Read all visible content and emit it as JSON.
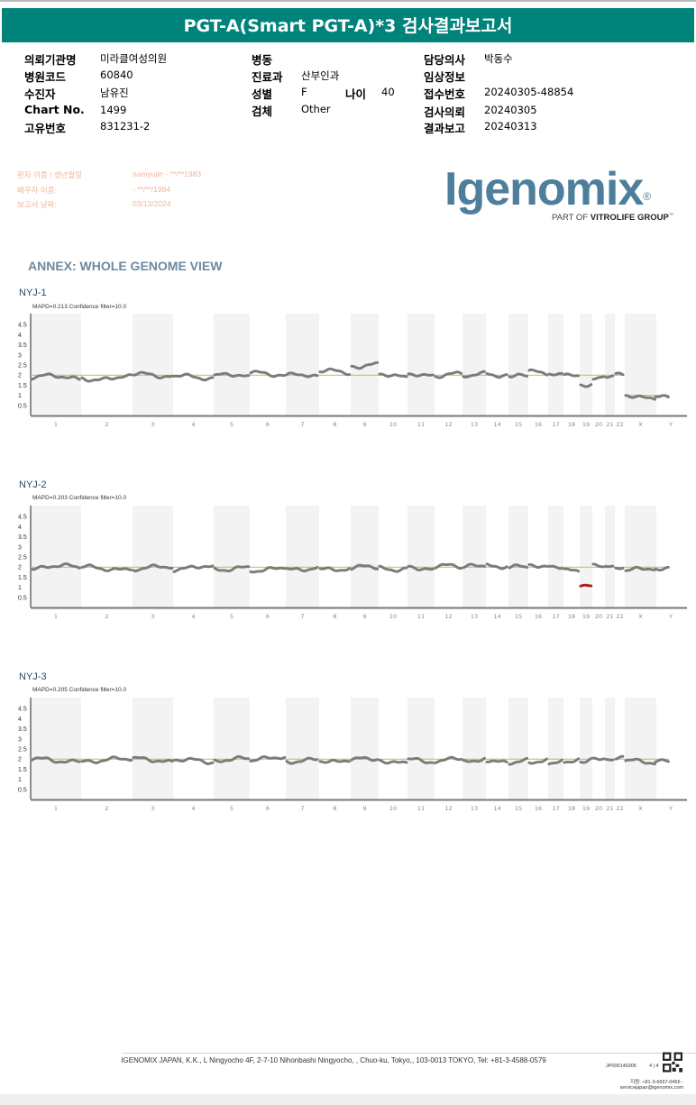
{
  "header": {
    "title": "PGT-A(Smart PGT-A)*3 검사결과보고서"
  },
  "info": {
    "col1": [
      {
        "label": "의뢰기관명",
        "value": "미라클여성의원"
      },
      {
        "label": "병원코드",
        "value": "60840"
      },
      {
        "label": "수진자",
        "value": "남유진"
      },
      {
        "label": "Chart No.",
        "value": "1499"
      },
      {
        "label": "고유번호",
        "value": "831231-2"
      }
    ],
    "col2": [
      {
        "label": "병동",
        "value": ""
      },
      {
        "label": "진료과",
        "value": "산부인과"
      },
      {
        "label": "성별",
        "value": "F"
      },
      {
        "label": "검체",
        "value": "Other"
      }
    ],
    "age": {
      "label": "나이",
      "value": "40"
    },
    "col3": [
      {
        "label": "담당의사",
        "value": "박동수"
      },
      {
        "label": "임상정보",
        "value": ""
      },
      {
        "label": "접수번호",
        "value": "20240305-48854"
      },
      {
        "label": "검사의뢰",
        "value": "20240305"
      },
      {
        "label": "결과보고",
        "value": "20240313"
      }
    ]
  },
  "patient": [
    {
      "label": "환자 이름 / 생년월일",
      "value": "namyujin - **/**1983"
    },
    {
      "label": "배우자 이름:",
      "value": " - **/**/1984"
    },
    {
      "label": "보고서 날짜:",
      "value": "03/13/2024"
    }
  ],
  "logo": {
    "name": "Igenomix",
    "reg": "®",
    "sub_prefix": "PART OF ",
    "sub_bold": "VITROLIFE GROUP",
    "tm": "™"
  },
  "annex_title": "ANNEX: WHOLE GENOME VIEW",
  "colors": {
    "teal": "#00837b",
    "point": "#7b7b7b",
    "abnormal": "#b01c1c",
    "ref": "#d4b25a",
    "band": "#f3f3f3"
  },
  "chart_data": [
    {
      "type": "scatter",
      "title": "NYJ-1",
      "subtitle": "MAPD=0.213 Confidence filter=10.0",
      "yticks": [
        "0.5",
        "1",
        "1.5",
        "2",
        "2.5",
        "3",
        "3.5",
        "4",
        "4.5"
      ],
      "ylim": [
        0,
        5
      ],
      "categories": [
        "1",
        "2",
        "3",
        "4",
        "5",
        "6",
        "7",
        "8",
        "9",
        "10",
        "11",
        "12",
        "13",
        "14",
        "15",
        "16",
        "17",
        "18",
        "19",
        "20",
        "21",
        "22",
        "X",
        "Y"
      ],
      "copy_number": [
        1.9,
        1.85,
        2.0,
        1.9,
        1.95,
        2.05,
        1.95,
        2.15,
        2.5,
        1.95,
        1.95,
        2.0,
        2.0,
        2.05,
        1.9,
        2.1,
        2.0,
        2.05,
        1.6,
        1.95,
        2.0,
        1.95,
        0.95,
        1.0
      ],
      "reference": {
        "autosomes": 2,
        "X": 1,
        "Y": 1
      },
      "abnormal": []
    },
    {
      "type": "scatter",
      "title": "NYJ-2",
      "subtitle": "MAPD=0.203 Confidence filter=10.0",
      "yticks": [
        "0.5",
        "1",
        "1.5",
        "2",
        "2.5",
        "3",
        "3.5",
        "4",
        "4.5"
      ],
      "ylim": [
        0,
        5
      ],
      "categories": [
        "1",
        "2",
        "3",
        "4",
        "5",
        "6",
        "7",
        "8",
        "9",
        "10",
        "11",
        "12",
        "13",
        "14",
        "15",
        "16",
        "17",
        "18",
        "19",
        "20",
        "21",
        "22",
        "X",
        "Y"
      ],
      "copy_number": [
        2.0,
        1.95,
        1.95,
        1.95,
        1.95,
        1.9,
        1.95,
        1.95,
        1.95,
        1.95,
        1.95,
        2.0,
        2.0,
        2.1,
        1.95,
        2.0,
        1.95,
        1.85,
        1.1,
        2.1,
        2.0,
        1.95,
        1.85,
        1.85
      ],
      "reference": {
        "autosomes": 2,
        "X": 2,
        "Y": 2
      },
      "abnormal": [
        "19"
      ]
    },
    {
      "type": "scatter",
      "title": "NYJ-3",
      "subtitle": "MAPD=0.205 Confidence filter=10.0",
      "yticks": [
        "0.5",
        "1",
        "1.5",
        "2",
        "2.5",
        "3",
        "3.5",
        "4",
        "4.5"
      ],
      "ylim": [
        0,
        5
      ],
      "categories": [
        "1",
        "2",
        "3",
        "4",
        "5",
        "6",
        "7",
        "8",
        "9",
        "10",
        "11",
        "12",
        "13",
        "14",
        "15",
        "16",
        "17",
        "18",
        "19",
        "20",
        "21",
        "22",
        "X",
        "Y"
      ],
      "copy_number": [
        1.95,
        1.95,
        1.95,
        1.9,
        1.95,
        2.0,
        1.95,
        1.95,
        1.95,
        1.9,
        1.9,
        1.95,
        1.95,
        1.85,
        1.9,
        1.9,
        1.9,
        1.9,
        1.95,
        2.0,
        2.0,
        1.95,
        1.85,
        1.85
      ],
      "reference": {
        "autosomes": 2,
        "X": 2,
        "Y": 2
      },
      "abnormal": []
    }
  ],
  "footer": {
    "address": "IGENOMIX JAPAN, K.K., L Ningyocho 4F, 2-7-10 Nihonbashi Ningyocho, , Chuo-ku, Tokyo,, 103-0013 TOKYO, Tel: +81-3-4588-0579",
    "doc_id": "JP000146305",
    "page": "4 | 4",
    "support_phone": "지원: +81-3-6667-0456  -",
    "support_email": "servicejapan@igenomix.com"
  }
}
